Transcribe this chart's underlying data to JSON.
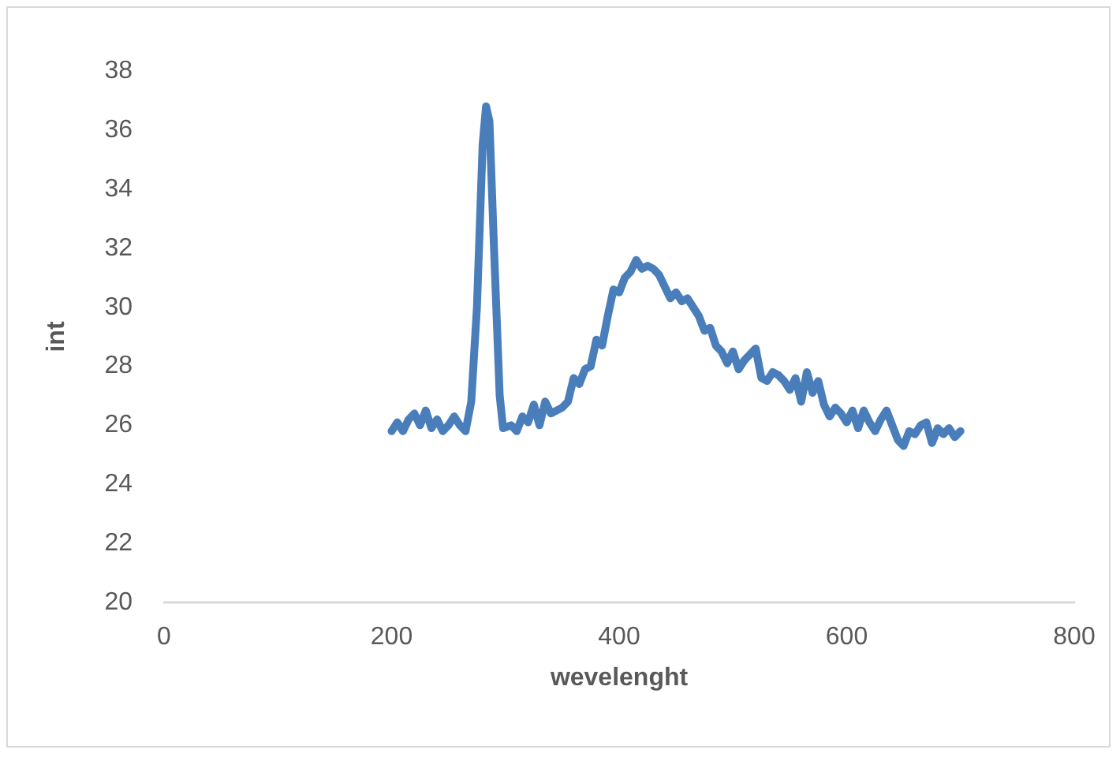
{
  "chart_data": {
    "type": "line",
    "xlabel": "wevelenght",
    "ylabel": "int",
    "xlim": [
      0,
      800
    ],
    "xticks": [
      0,
      200,
      400,
      600,
      800
    ],
    "ylim": [
      20,
      38
    ],
    "yticks": [
      20,
      22,
      24,
      26,
      28,
      30,
      32,
      34,
      36,
      38
    ],
    "grid": false,
    "marker": "none",
    "line_style": "solid",
    "series": [
      {
        "color": "#4a7ebb",
        "x": [
          200,
          205,
          210,
          215,
          220,
          225,
          230,
          235,
          240,
          245,
          250,
          255,
          260,
          265,
          270,
          275,
          280,
          283,
          286,
          290,
          295,
          298,
          305,
          310,
          315,
          320,
          325,
          330,
          335,
          340,
          350,
          355,
          360,
          365,
          370,
          375,
          380,
          385,
          390,
          395,
          400,
          405,
          410,
          415,
          420,
          425,
          430,
          435,
          440,
          445,
          450,
          455,
          460,
          465,
          470,
          475,
          480,
          485,
          490,
          495,
          500,
          505,
          510,
          515,
          520,
          525,
          530,
          535,
          540,
          545,
          550,
          555,
          560,
          565,
          570,
          575,
          580,
          585,
          590,
          595,
          600,
          605,
          610,
          615,
          620,
          625,
          630,
          635,
          640,
          645,
          650,
          655,
          660,
          665,
          670,
          675,
          680,
          685,
          690,
          695,
          700
        ],
        "values": [
          25.8,
          26.1,
          25.8,
          26.2,
          26.4,
          26.0,
          26.5,
          25.9,
          26.2,
          25.8,
          26.0,
          26.3,
          26.0,
          25.8,
          26.8,
          30,
          35.5,
          36.8,
          36.3,
          32,
          27,
          25.9,
          26.0,
          25.8,
          26.3,
          26.1,
          26.7,
          26.0,
          26.8,
          26.4,
          26.6,
          26.8,
          27.6,
          27.4,
          27.9,
          28.0,
          28.9,
          28.7,
          29.7,
          30.6,
          30.5,
          31.0,
          31.2,
          31.6,
          31.3,
          31.4,
          31.3,
          31.1,
          30.7,
          30.3,
          30.5,
          30.2,
          30.3,
          30.0,
          29.7,
          29.2,
          29.3,
          28.7,
          28.5,
          28.1,
          28.5,
          27.9,
          28.2,
          28.4,
          28.6,
          27.6,
          27.5,
          27.8,
          27.7,
          27.5,
          27.2,
          27.6,
          26.8,
          27.8,
          27.1,
          27.5,
          26.7,
          26.3,
          26.6,
          26.4,
          26.1,
          26.5,
          25.9,
          26.5,
          26.1,
          25.8,
          26.2,
          26.5,
          26.0,
          25.5,
          25.3,
          25.8,
          25.7,
          26.0,
          26.1,
          25.4,
          25.9,
          25.7,
          25.9,
          25.6,
          25.8
        ]
      }
    ]
  }
}
